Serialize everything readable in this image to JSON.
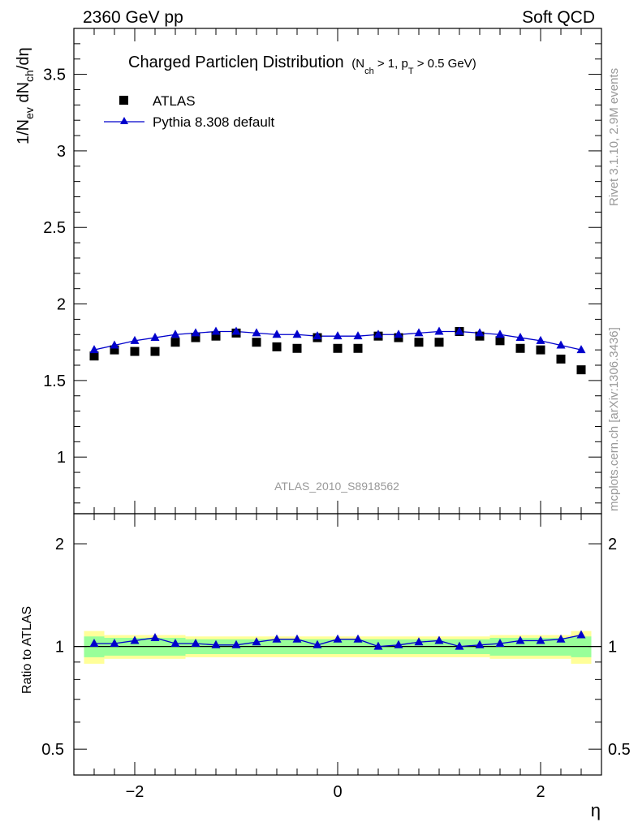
{
  "header": {
    "left": "2360 GeV pp",
    "right": "Soft QCD"
  },
  "title": {
    "main": "Charged Particleη Distribution",
    "cuts_prefix": "(N",
    "cuts_sub1": "ch",
    "cuts_mid": " > 1, p",
    "cuts_sub2": "T",
    "cuts_suffix": " > 0.5 GeV)"
  },
  "side_labels": {
    "rivet": "Rivet 3.1.10,  2.9M events",
    "mcplots": "mcplots.cern.ch [arXiv:1306.3436]"
  },
  "analysis_tag": "ATLAS_2010_S8918562",
  "axes": {
    "ylabel_main": "1/N",
    "ylabel_sub1": "ev",
    "ylabel_mid": " dN",
    "ylabel_sub2": "ch",
    "ylabel_end": "/dη",
    "ylabel_ratio": "Ratio to ATLAS",
    "xlabel": "η"
  },
  "legend": {
    "data_label": "ATLAS",
    "mc_label": "Pythia 8.308 default"
  },
  "colors": {
    "mc": "#0000cc",
    "band_inner": "#99ff99",
    "band_outer": "#ffff99"
  },
  "chart_data": [
    {
      "type": "scatter",
      "panel": "main",
      "xlim": [
        -2.6,
        2.6
      ],
      "ylim": [
        0.63,
        3.8
      ],
      "yticks": [
        1,
        1.5,
        2,
        2.5,
        3,
        3.5
      ],
      "ytick_labels": [
        "1",
        "1.5",
        "2",
        "2.5",
        "3",
        "3.5"
      ],
      "x": [
        -2.4,
        -2.2,
        -2.0,
        -1.8,
        -1.6,
        -1.4,
        -1.2,
        -1.0,
        -0.8,
        -0.6,
        -0.4,
        -0.2,
        0.0,
        0.2,
        0.4,
        0.6,
        0.8,
        1.0,
        1.2,
        1.4,
        1.6,
        1.8,
        2.0,
        2.2,
        2.4
      ],
      "series": [
        {
          "name": "ATLAS",
          "marker": "square",
          "values": [
            1.66,
            1.7,
            1.69,
            1.69,
            1.75,
            1.78,
            1.79,
            1.81,
            1.75,
            1.72,
            1.71,
            1.78,
            1.71,
            1.71,
            1.79,
            1.78,
            1.75,
            1.75,
            1.82,
            1.79,
            1.76,
            1.71,
            1.7,
            1.64,
            1.57
          ]
        },
        {
          "name": "Pythia 8.308 default",
          "marker": "triangle",
          "values": [
            1.7,
            1.73,
            1.76,
            1.78,
            1.8,
            1.81,
            1.82,
            1.82,
            1.81,
            1.8,
            1.8,
            1.79,
            1.79,
            1.79,
            1.8,
            1.8,
            1.81,
            1.82,
            1.82,
            1.81,
            1.8,
            1.78,
            1.76,
            1.73,
            1.7
          ]
        }
      ]
    },
    {
      "type": "line",
      "panel": "ratio",
      "xlim": [
        -2.6,
        2.6
      ],
      "ylim": [
        0.42,
        2.45
      ],
      "yticks": [
        0.5,
        1,
        2
      ],
      "ytick_labels": [
        "0.5",
        "1",
        "2"
      ],
      "xticks": [
        -2,
        0,
        2
      ],
      "xtick_labels": [
        "−2",
        "0",
        "2"
      ],
      "x": [
        -2.4,
        -2.2,
        -2.0,
        -1.8,
        -1.6,
        -1.4,
        -1.2,
        -1.0,
        -0.8,
        -0.6,
        -0.4,
        -0.2,
        0.0,
        0.2,
        0.4,
        0.6,
        0.8,
        1.0,
        1.2,
        1.4,
        1.6,
        1.8,
        2.0,
        2.2,
        2.4
      ],
      "series": [
        {
          "name": "Pythia 8.308 default",
          "values": [
            1.02,
            1.02,
            1.04,
            1.06,
            1.02,
            1.02,
            1.01,
            1.01,
            1.03,
            1.05,
            1.05,
            1.01,
            1.05,
            1.05,
            1.0,
            1.01,
            1.03,
            1.04,
            1.0,
            1.01,
            1.02,
            1.04,
            1.04,
            1.05,
            1.08
          ]
        }
      ],
      "band_edges": [
        -2.5,
        -2.3,
        -2.1,
        -1.9,
        -1.7,
        -1.5,
        -1.3,
        -1.1,
        -0.9,
        -0.7,
        -0.5,
        -0.3,
        -0.1,
        0.1,
        0.3,
        0.5,
        0.7,
        0.9,
        1.1,
        1.3,
        1.5,
        1.7,
        1.9,
        2.1,
        2.3,
        2.5
      ],
      "band_inner_halfwidth": [
        0.07,
        0.06,
        0.06,
        0.06,
        0.06,
        0.05,
        0.05,
        0.05,
        0.05,
        0.05,
        0.05,
        0.05,
        0.05,
        0.05,
        0.05,
        0.05,
        0.05,
        0.05,
        0.05,
        0.05,
        0.06,
        0.06,
        0.06,
        0.06,
        0.07
      ],
      "band_outer_halfwidth": [
        0.11,
        0.08,
        0.08,
        0.08,
        0.08,
        0.07,
        0.07,
        0.07,
        0.07,
        0.07,
        0.07,
        0.07,
        0.07,
        0.07,
        0.07,
        0.07,
        0.07,
        0.07,
        0.07,
        0.07,
        0.08,
        0.08,
        0.08,
        0.08,
        0.11
      ]
    }
  ]
}
